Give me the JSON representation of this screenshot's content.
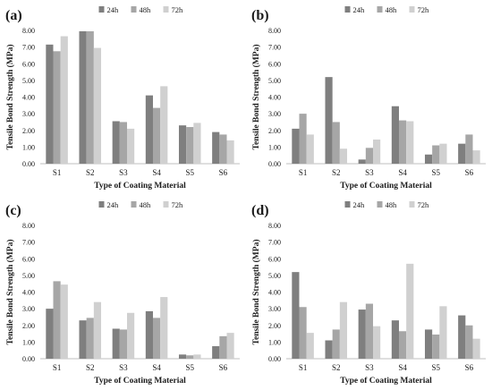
{
  "figure": {
    "panels_text": [
      "(a)",
      "(b)",
      "(c)",
      "(d)"
    ]
  },
  "chart_data": [
    {
      "panel": "(a)",
      "type": "bar",
      "categories": [
        "S1",
        "S2",
        "S3",
        "S4",
        "S5",
        "S6"
      ],
      "series": [
        {
          "name": "24h",
          "color": "#7f7f7f",
          "values": [
            7.15,
            7.95,
            2.55,
            4.1,
            2.3,
            1.9
          ]
        },
        {
          "name": "48h",
          "color": "#a6a6a6",
          "values": [
            6.75,
            7.95,
            2.5,
            3.35,
            2.2,
            1.75
          ]
        },
        {
          "name": "72h",
          "color": "#d0d0d0",
          "values": [
            7.65,
            6.95,
            2.1,
            4.65,
            2.45,
            1.4
          ]
        }
      ],
      "xlabel": "Type of Coating Material",
      "ylabel": "Tensile Bond Strength (MPa)",
      "ylim": [
        0,
        8
      ],
      "yticks": [
        "0.00",
        "1.00",
        "2.00",
        "3.00",
        "4.00",
        "5.00",
        "6.00",
        "7.00",
        "8.00"
      ],
      "legend_position": "top-center",
      "grid": false
    },
    {
      "panel": "(b)",
      "type": "bar",
      "categories": [
        "S1",
        "S2",
        "S3",
        "S4",
        "S5",
        "S6"
      ],
      "series": [
        {
          "name": "24h",
          "color": "#7f7f7f",
          "values": [
            2.1,
            5.2,
            0.25,
            3.45,
            0.55,
            1.2
          ]
        },
        {
          "name": "48h",
          "color": "#a6a6a6",
          "values": [
            3.0,
            2.5,
            0.95,
            2.6,
            1.1,
            1.75
          ]
        },
        {
          "name": "72h",
          "color": "#d0d0d0",
          "values": [
            1.75,
            0.9,
            1.45,
            2.55,
            1.2,
            0.8
          ]
        }
      ],
      "xlabel": "Type of Coating Material",
      "ylabel": "Tensile Bond Strength (MPa)",
      "ylim": [
        0,
        8
      ],
      "yticks": [
        "0.00",
        "1.00",
        "2.00",
        "3.00",
        "4.00",
        "5.00",
        "6.00",
        "7.00",
        "8.00"
      ],
      "legend_position": "top-center",
      "grid": false
    },
    {
      "panel": "(c)",
      "type": "bar",
      "categories": [
        "S1",
        "S2",
        "S3",
        "S4",
        "S5",
        "S6"
      ],
      "series": [
        {
          "name": "24h",
          "color": "#7f7f7f",
          "values": [
            3.0,
            2.3,
            1.8,
            2.85,
            0.25,
            0.75
          ]
        },
        {
          "name": "48h",
          "color": "#a6a6a6",
          "values": [
            4.65,
            2.45,
            1.75,
            2.45,
            0.2,
            1.35
          ]
        },
        {
          "name": "72h",
          "color": "#d0d0d0",
          "values": [
            4.45,
            3.4,
            2.75,
            3.7,
            0.25,
            1.55
          ]
        }
      ],
      "xlabel": "Type of Coating Material",
      "ylabel": "Tensile Bond Strength (MPa)",
      "ylim": [
        0,
        8
      ],
      "yticks": [
        "0.00",
        "1.00",
        "2.00",
        "3.00",
        "4.00",
        "5.00",
        "6.00",
        "7.00",
        "8.00"
      ],
      "legend_position": "top-center",
      "grid": false
    },
    {
      "panel": "(d)",
      "type": "bar",
      "categories": [
        "S1",
        "S2",
        "S3",
        "S4",
        "S5",
        "S6"
      ],
      "series": [
        {
          "name": "24h",
          "color": "#7f7f7f",
          "values": [
            5.2,
            1.1,
            2.95,
            2.3,
            1.75,
            2.6
          ]
        },
        {
          "name": "48h",
          "color": "#a6a6a6",
          "values": [
            3.1,
            1.75,
            3.3,
            1.65,
            1.45,
            2.0
          ]
        },
        {
          "name": "72h",
          "color": "#d0d0d0",
          "values": [
            1.55,
            3.4,
            1.95,
            5.7,
            3.15,
            1.2
          ]
        }
      ],
      "xlabel": "Type of Coating Material",
      "ylabel": "Tensile Bond Strength (MPa)",
      "ylim": [
        0,
        8
      ],
      "yticks": [
        "0.00",
        "1.00",
        "2.00",
        "3.00",
        "4.00",
        "5.00",
        "6.00",
        "7.00",
        "8.00"
      ],
      "legend_position": "top-center",
      "grid": false
    }
  ]
}
